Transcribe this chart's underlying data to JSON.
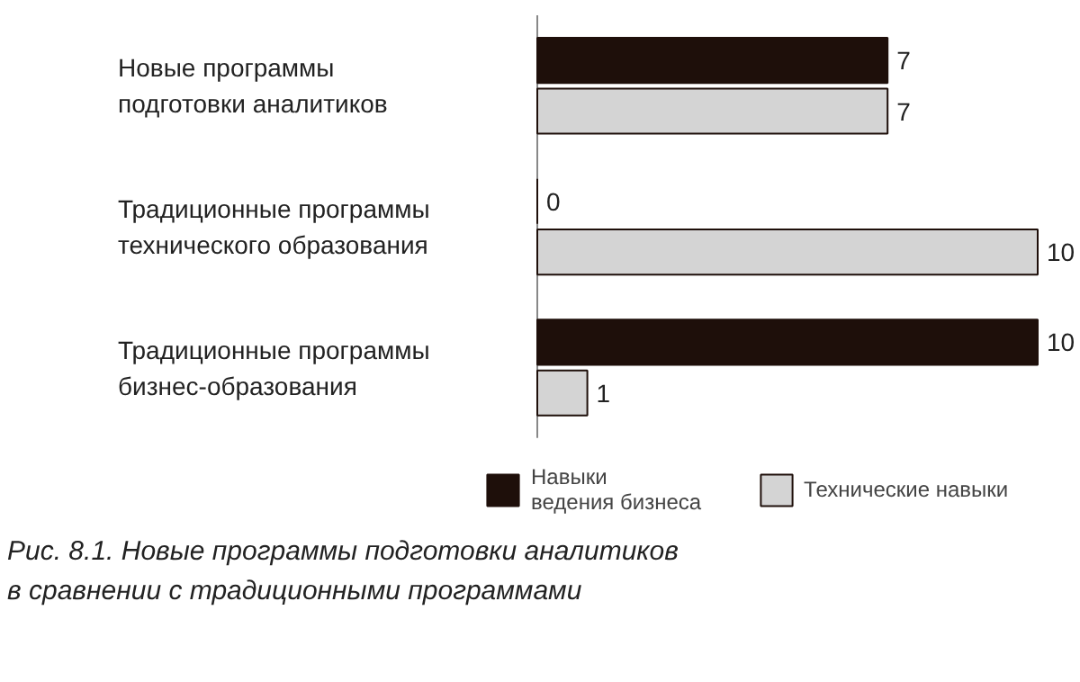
{
  "chart_data": {
    "type": "bar",
    "orientation": "horizontal",
    "categories": [
      "Новые программы\nподготовки аналитиков",
      "Традиционные программы\nтехнического образования",
      "Традиционные программы\nбизнес-образования"
    ],
    "series": [
      {
        "name": "Навыки\nведения бизнеса",
        "color": "#1e0f0a",
        "values": [
          7,
          0,
          10
        ]
      },
      {
        "name": "Технические навыки",
        "color": "#d4d4d4",
        "values": [
          7,
          10,
          1
        ]
      }
    ],
    "data_labels": true,
    "legend": "bottom",
    "annotations": [
      "Рис. 8.1. Новые программы подготовки аналитиков\nв сравнении с традиционными программами"
    ]
  }
}
